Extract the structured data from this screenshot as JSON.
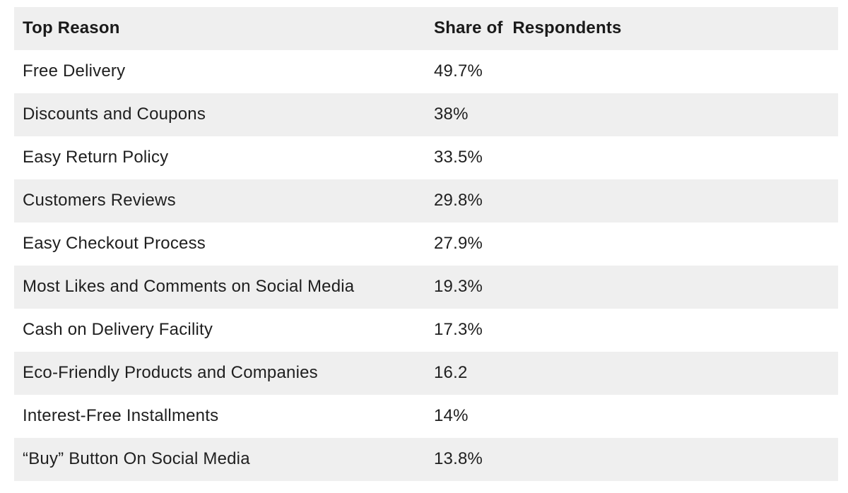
{
  "table": {
    "columns": {
      "reason": "Top Reason",
      "share": "Share of  Respondents"
    },
    "rows": [
      {
        "reason": "Free Delivery",
        "share": "49.7%"
      },
      {
        "reason": "Discounts and Coupons",
        "share": "38%"
      },
      {
        "reason": "Easy Return Policy",
        "share": "33.5%"
      },
      {
        "reason": "Customers Reviews",
        "share": "29.8%"
      },
      {
        "reason": "Easy Checkout Process",
        "share": "27.9%"
      },
      {
        "reason": "Most Likes and Comments on Social Media",
        "share": "19.3%"
      },
      {
        "reason": "Cash on Delivery Facility",
        "share": "17.3%"
      },
      {
        "reason": "Eco-Friendly Products and Companies",
        "share": "16.2"
      },
      {
        "reason": "Interest-Free Installments",
        "share": "14%"
      },
      {
        "reason": "“Buy” Button On Social Media",
        "share": "13.8%"
      }
    ]
  },
  "colors": {
    "stripe_background": "#efefef",
    "row_background": "#ffffff",
    "text": "#1f1f1f"
  },
  "chart_data": {
    "type": "table",
    "title": "",
    "columns": [
      "Top Reason",
      "Share of Respondents"
    ],
    "categories": [
      "Free Delivery",
      "Discounts and Coupons",
      "Easy Return Policy",
      "Customers Reviews",
      "Easy Checkout Process",
      "Most Likes and Comments on Social Media",
      "Cash on Delivery Facility",
      "Eco-Friendly Products and Companies",
      "Interest-Free Installments",
      "“Buy” Button On Social Media"
    ],
    "values": [
      49.7,
      38,
      33.5,
      29.8,
      27.9,
      19.3,
      17.3,
      16.2,
      14,
      13.8
    ],
    "value_labels": [
      "49.7%",
      "38%",
      "33.5%",
      "29.8%",
      "27.9%",
      "19.3%",
      "17.3%",
      "16.2",
      "14%",
      "13.8%"
    ],
    "layout": {
      "zebra_striping": true,
      "header_background": "#efefef"
    }
  }
}
